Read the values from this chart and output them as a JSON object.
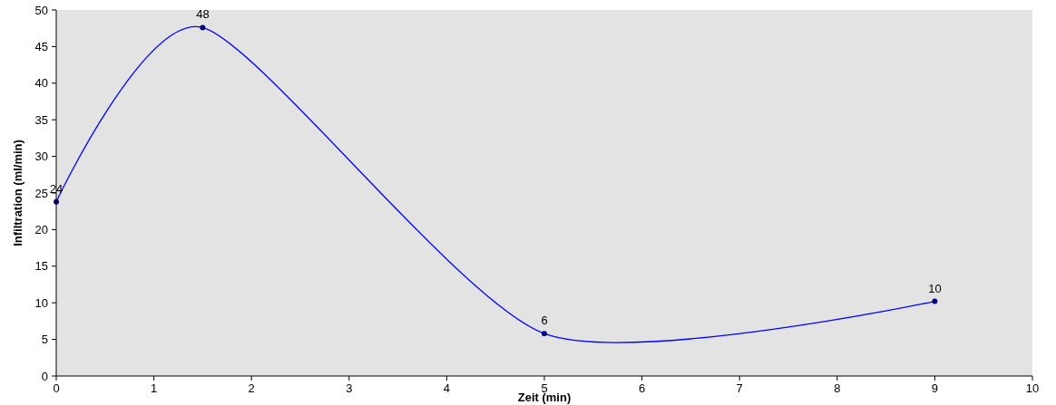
{
  "chart_data": {
    "type": "line",
    "xlabel": "Zeit (min)",
    "ylabel": "Infiltration (ml/min)",
    "x": [
      0,
      1.5,
      5,
      9
    ],
    "series": [
      {
        "color": "#0000ff",
        "values": [
          23.8,
          47.6,
          5.8,
          10.2
        ],
        "value_labels": [
          "24",
          "48",
          "6",
          "10"
        ]
      }
    ],
    "xlim": [
      0,
      10
    ],
    "xticks": [
      0,
      1,
      2,
      3,
      4,
      5,
      6,
      7,
      8,
      9,
      10
    ],
    "ylim": [
      0,
      50
    ],
    "yticks": [
      0,
      5,
      10,
      15,
      20,
      25,
      30,
      35,
      40,
      45,
      50
    ],
    "marker": "circle",
    "line_style": "solid"
  }
}
